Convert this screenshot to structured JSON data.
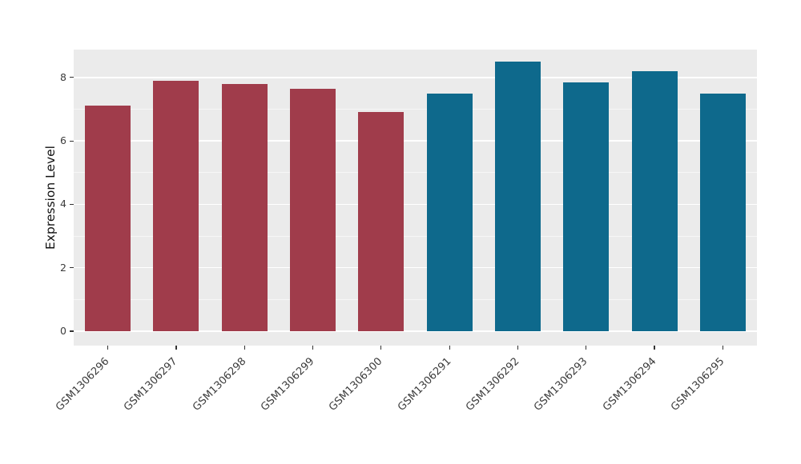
{
  "chart_data": {
    "type": "bar",
    "title": "",
    "xlabel": "",
    "ylabel": "Expression Level",
    "categories": [
      "GSM1306296",
      "GSM1306297",
      "GSM1306298",
      "GSM1306299",
      "GSM1306300",
      "GSM1306291",
      "GSM1306292",
      "GSM1306293",
      "GSM1306294",
      "GSM1306295"
    ],
    "values": [
      7.1,
      7.9,
      7.8,
      7.65,
      6.9,
      7.5,
      8.5,
      7.85,
      8.2,
      7.5
    ],
    "bar_colors": [
      "#A03C4B",
      "#A03C4B",
      "#A03C4B",
      "#A03C4B",
      "#A03C4B",
      "#0E698C",
      "#0E698C",
      "#0E698C",
      "#0E698C",
      "#0E698C"
    ],
    "group_colors": {
      "left_group": "#A03C4B",
      "right_group": "#0E698C"
    },
    "ylim": [
      0,
      8.9
    ],
    "yticks": [
      0,
      2,
      4,
      6,
      8
    ],
    "minor_yticks": [
      1,
      3,
      5,
      7
    ],
    "grid": true,
    "legend": "none",
    "panel_background": "#EBEBEB",
    "gridline_color": "#FFFFFF"
  }
}
